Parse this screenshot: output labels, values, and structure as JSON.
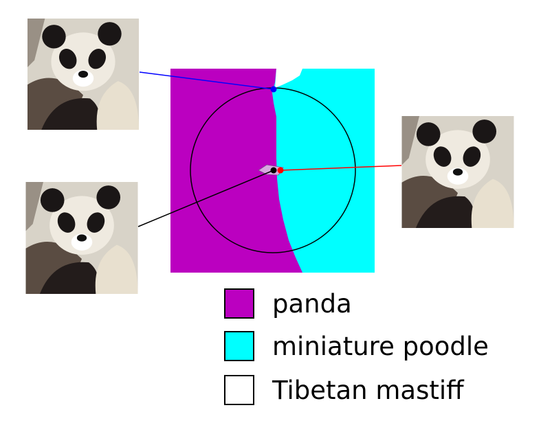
{
  "legend": {
    "items": [
      {
        "label": "panda",
        "color": "#bb00c0"
      },
      {
        "label": "miniature poodle",
        "color": "#00ffff"
      },
      {
        "label": "Tibetan mastiff",
        "color": "#ffffff"
      }
    ]
  },
  "colors": {
    "panda_region": "#bb00c0",
    "poodle_region": "#00ffff",
    "mastiff_region": "#ffffff",
    "adversarial_link": "#0000ff",
    "original_link": "#000000",
    "perturbed_link": "#ff0000",
    "circle": "#000000"
  },
  "thumbnails": [
    {
      "name": "panda-image-adversarial-top-left",
      "link_color": "blue"
    },
    {
      "name": "panda-image-original-bottom-left",
      "link_color": "black"
    },
    {
      "name": "panda-image-perturbed-right",
      "link_color": "red"
    }
  ]
}
